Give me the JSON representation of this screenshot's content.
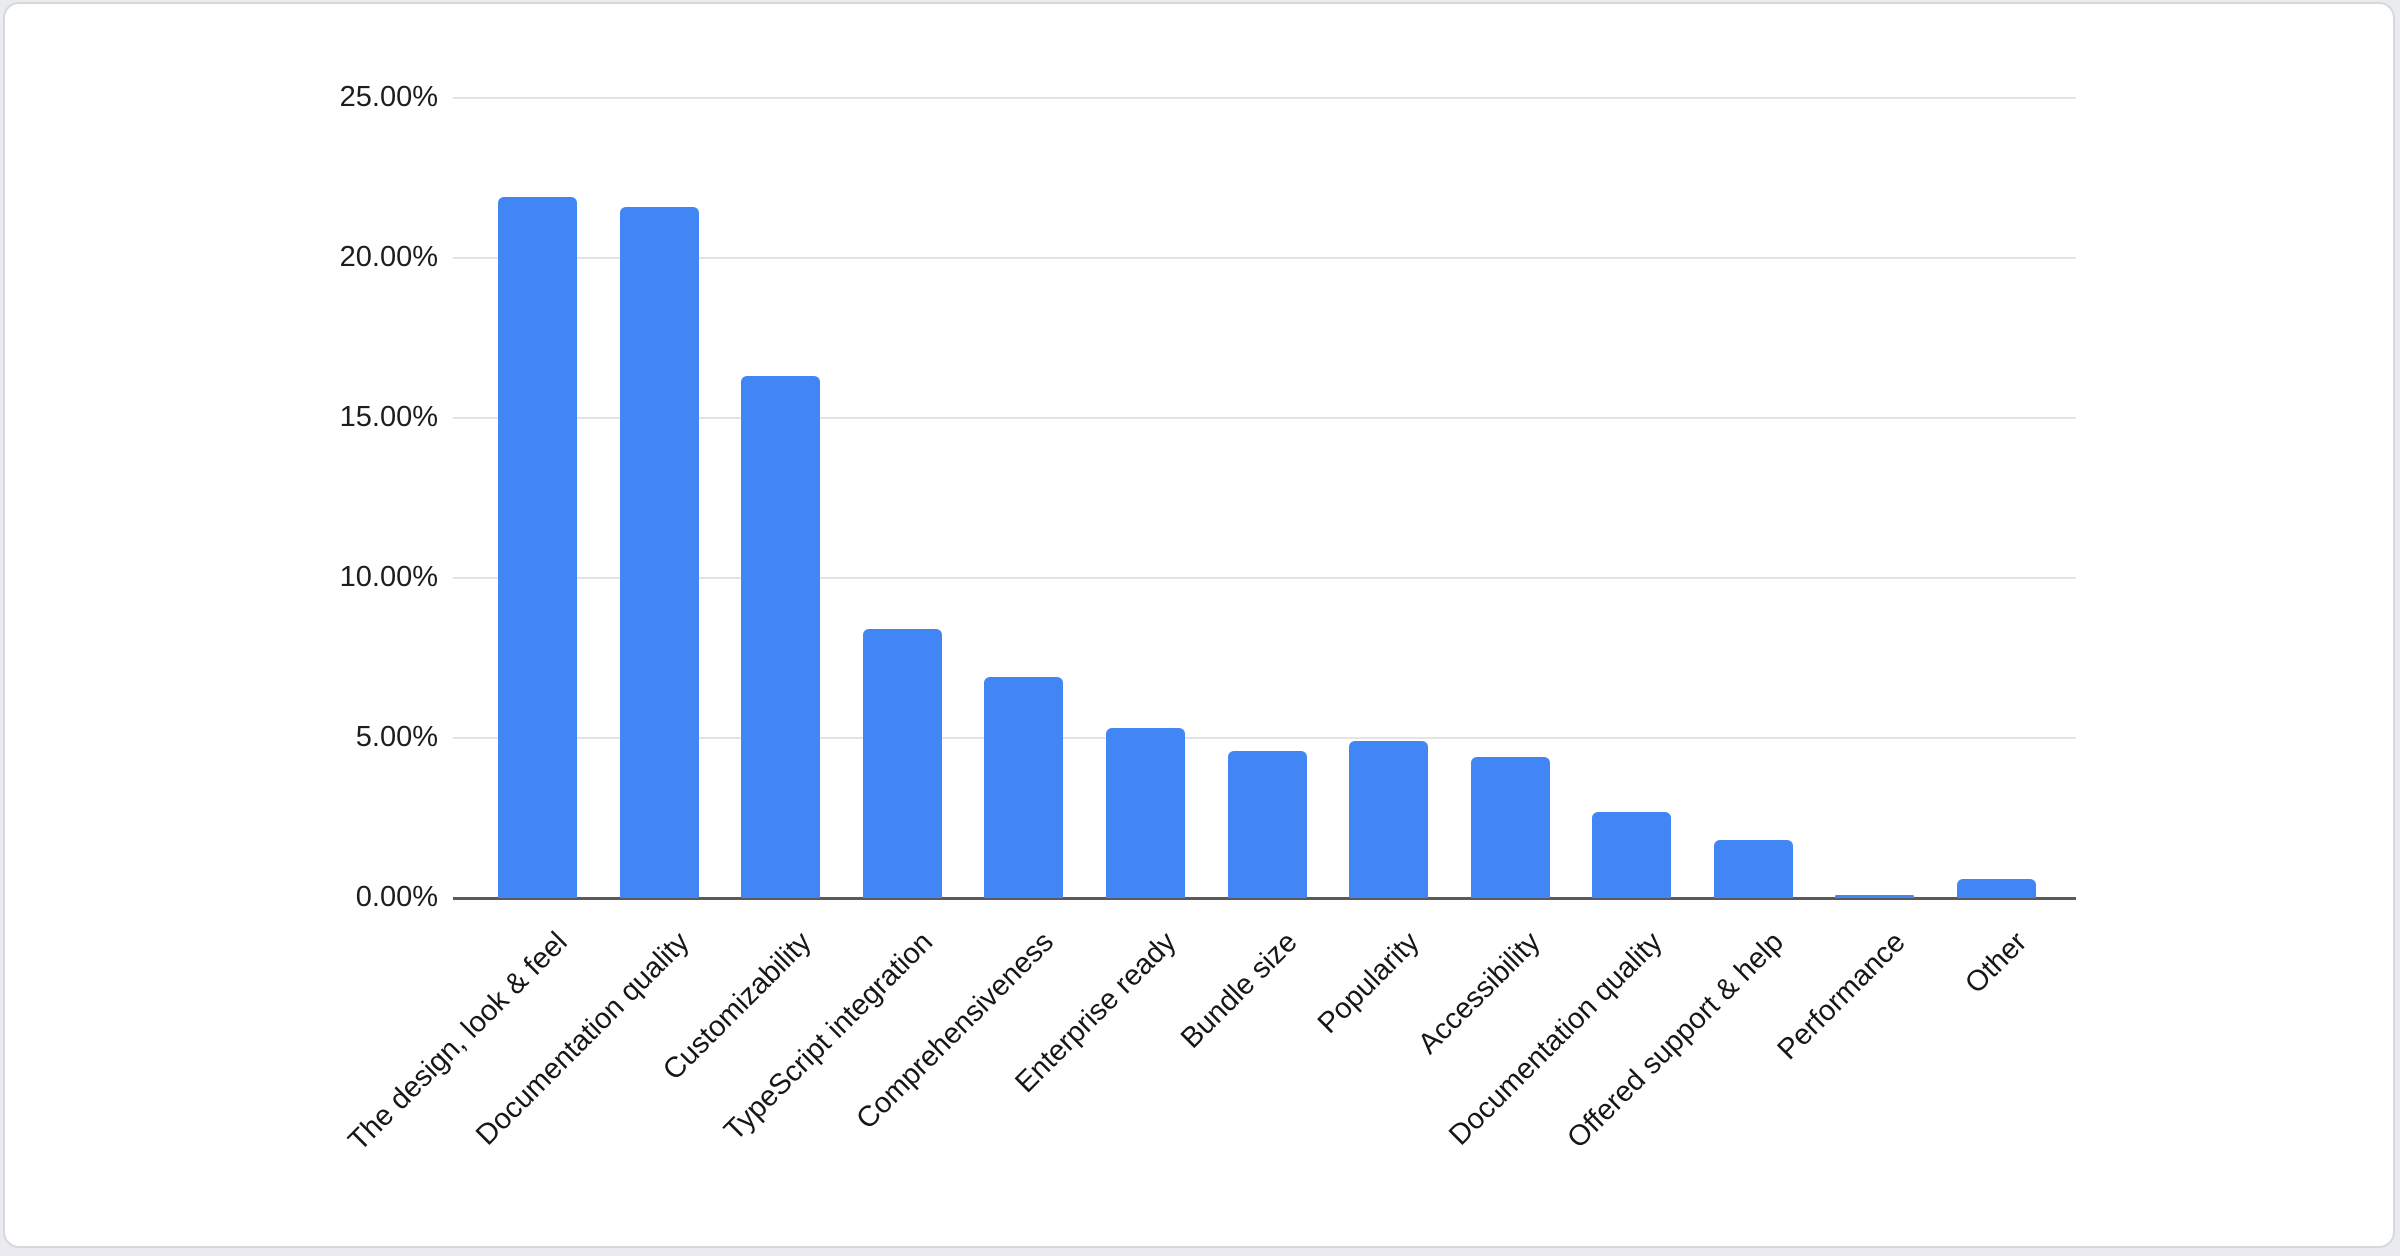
{
  "chart_data": {
    "type": "bar",
    "title": "",
    "xlabel": "",
    "ylabel": "",
    "categories": [
      "The design, look & feel",
      "Documentation quality",
      "Customizability",
      "TypeScript integration",
      "Comprehensiveness",
      "Enterprise ready",
      "Bundle size",
      "Popularity",
      "Accessibility",
      "Documentation quality",
      "Offered support & help",
      "Performance",
      "Other"
    ],
    "values": [
      21.9,
      21.6,
      16.3,
      8.4,
      6.9,
      5.3,
      4.6,
      4.9,
      4.4,
      2.7,
      1.8,
      0.1,
      0.6
    ],
    "value_unit": "%",
    "ylim": [
      0,
      25
    ],
    "ytick_values": [
      0,
      5,
      10,
      15,
      20,
      25
    ],
    "ytick_labels": [
      "0.00%",
      "5.00%",
      "10.00%",
      "15.00%",
      "20.00%",
      "25.00%"
    ],
    "grid": true,
    "legend": false,
    "x_labels_rotation_deg": 45
  },
  "colors": {
    "bar": "#4285F4",
    "gridline": "#e4e4e4",
    "axis": "#5a5a5a",
    "tick_text": "#1d1d1f",
    "category_text": "#161616",
    "card_background": "#ffffff",
    "card_border": "#d6d9dc",
    "page_background": "#e9ebee"
  }
}
